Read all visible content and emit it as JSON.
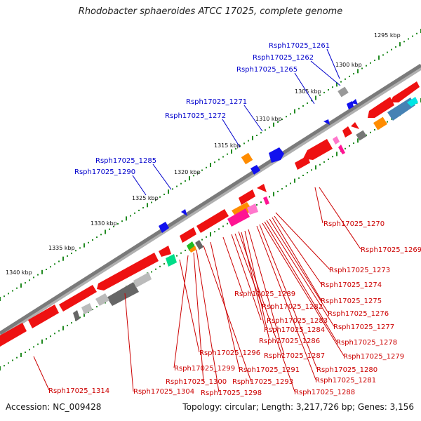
{
  "header": {
    "title": "Rhodobacter sphaeroides ATCC 17025, complete genome"
  },
  "footer": {
    "accession": "Accession: NC_009428",
    "topology": "Topology: circular; Length: 3,217,726 bp; Genes: 3,156"
  },
  "colors": {
    "backbone": "#808080",
    "ruler_tick": "#228b22",
    "forward_label": "#0000cc",
    "reverse_label": "#cc0000",
    "gene_red": "#ee1111",
    "gene_blue": "#1111ee",
    "gene_orange": "#ff8c00",
    "gene_magenta": "#ff1493",
    "gene_gray": "#777777",
    "gene_steelblue": "#4682b4"
  },
  "scale_labels": [
    "1295 kbp",
    "1300 kbp",
    "1305 kbp",
    "1310 kbp",
    "1315 kbp",
    "1320 kbp",
    "1325 kbp",
    "1330 kbp",
    "1335 kbp",
    "1340 kbp"
  ],
  "forward_labels": [
    "Rsph17025_1261",
    "Rsph17025_1262",
    "Rsph17025_1265",
    "Rsph17025_1271",
    "Rsph17025_1272",
    "Rsph17025_1285",
    "Rsph17025_1290"
  ],
  "reverse_labels": [
    "Rsph17025_1270",
    "Rsph17025_1269",
    "Rsph17025_1273",
    "Rsph17025_1274",
    "Rsph17025_1275",
    "Rsph17025_1276",
    "Rsph17025_1277",
    "Rsph17025_1278",
    "Rsph17025_1279",
    "Rsph17025_1280",
    "Rsph17025_1281",
    "Rsph17025_1288",
    "Rsph17025_1287",
    "Rsph17025_1286",
    "Rsph17025_1284",
    "Rsph17025_1283",
    "Rsph17025_1282",
    "Rsph17025_1289",
    "Rsph17025_1291",
    "Rsph17025_1293",
    "Rsph17025_1298",
    "Rsph17025_1300",
    "Rsph17025_1299",
    "Rsph17025_1296",
    "Rsph17025_1304",
    "Rsph17025_1314"
  ]
}
